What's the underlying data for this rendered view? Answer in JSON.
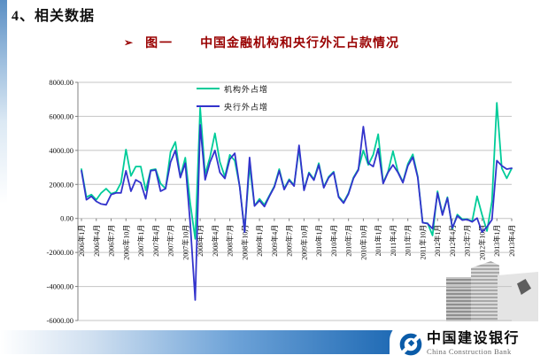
{
  "slide": {
    "title": "4、相关数据"
  },
  "figure": {
    "bullet": "➢",
    "label": "图一",
    "title": "中国金融机构和央行外汇占款情况"
  },
  "chart_data": {
    "type": "line",
    "title": "中国金融机构和央行外汇占款情况",
    "n_points": 88,
    "x_range_label": "2006年1月 — 2013年4月",
    "x_tick_labels": [
      "2006年1月",
      "2006年4月",
      "2006年7月",
      "2006年10月",
      "2007年1月",
      "2007年4月",
      "2007年7月",
      "2007年10月",
      "2008年1月",
      "2008年4月",
      "2008年7月",
      "2008年10月",
      "2009年1月",
      "2009年4月",
      "2009年7月",
      "2009年10月",
      "2010年1月",
      "2010年4月",
      "2010年7月",
      "2010年10月",
      "2011年1月",
      "2011年4月",
      "2011年7月",
      "2011年10月",
      "2012年1月",
      "2012年4月",
      "2012年7月",
      "2012年10月",
      "2013年1月",
      "2013年4月"
    ],
    "y_tick_labels": [
      "8000.00",
      "6000.00",
      "4000.00",
      "2000.00",
      "0.00",
      "-2000.00",
      "-4000.00",
      "-6000.00"
    ],
    "ylim": [
      -6000,
      8000
    ],
    "y_step": 2000,
    "grid": "horizontal",
    "legend_position": "top-inside",
    "series": [
      {
        "name": "机构外占增",
        "color": "#00CC99",
        "values": [
          2900,
          1250,
          1400,
          1100,
          1500,
          1750,
          1450,
          1550,
          2100,
          4050,
          2500,
          3050,
          3050,
          1650,
          2850,
          2900,
          2050,
          1750,
          3900,
          4500,
          2450,
          3570,
          880,
          -1200,
          6500,
          2600,
          3600,
          5000,
          3310,
          2450,
          3740,
          3400,
          1870,
          -750,
          3100,
          750,
          1150,
          800,
          1350,
          1900,
          2900,
          1750,
          2300,
          1950,
          4100,
          1700,
          2700,
          2300,
          3250,
          1850,
          2450,
          2750,
          1300,
          950,
          1500,
          2400,
          2900,
          4000,
          3150,
          3750,
          4950,
          2100,
          2750,
          3950,
          2750,
          2150,
          3200,
          3770,
          2470,
          -250,
          -280,
          -1000,
          1600,
          250,
          1250,
          -600,
          230,
          -40,
          -40,
          -170,
          1300,
          220,
          -740,
          1000,
          6800,
          2950,
          2360,
          2940
        ]
      },
      {
        "name": "央行外占增",
        "color": "#3333CC",
        "values": [
          2800,
          1100,
          1300,
          1000,
          850,
          800,
          1400,
          1500,
          1500,
          2800,
          1600,
          2270,
          2100,
          1150,
          2800,
          2850,
          1600,
          1750,
          3300,
          4000,
          2400,
          3250,
          -300,
          -4800,
          5500,
          2270,
          3300,
          4000,
          2700,
          2350,
          3480,
          3830,
          1840,
          -800,
          3580,
          730,
          1050,
          700,
          1300,
          1850,
          2800,
          1700,
          2250,
          1900,
          4300,
          1650,
          2650,
          2250,
          3150,
          1800,
          2400,
          2700,
          1250,
          900,
          1450,
          2350,
          2850,
          5400,
          3250,
          3050,
          4100,
          2050,
          2700,
          3150,
          2700,
          2100,
          3100,
          3600,
          2400,
          -250,
          -300,
          -600,
          1500,
          200,
          1200,
          -550,
          150,
          -100,
          -60,
          -200,
          20,
          -800,
          -500,
          -70,
          3400,
          3100,
          2900,
          2950
        ]
      }
    ]
  },
  "footer": {
    "bank_name_cn": "中国建设银行",
    "bank_name_en": "China Construction Bank"
  },
  "colors": {
    "title_red": "#990000",
    "ccb_blue": "#0A5BA8",
    "bar_blue": "#1160AE",
    "gridline": "#C4C4C4",
    "axis": "#808080"
  }
}
